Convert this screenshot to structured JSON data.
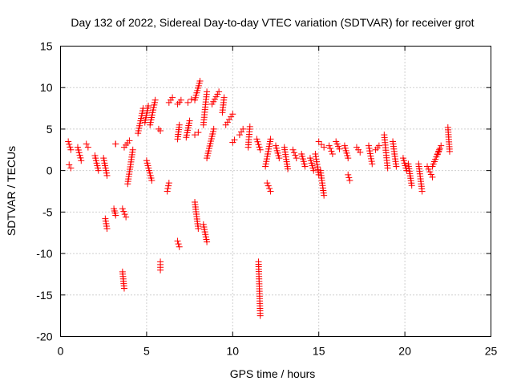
{
  "chart_data": {
    "type": "scatter",
    "title": "Day 132 of 2022, Sidereal Day-to-day VTEC variation (SDTVAR) for receiver grot",
    "xlabel": "GPS time / hours",
    "ylabel": "SDTVAR / TECUs",
    "xlim": [
      0,
      25
    ],
    "ylim": [
      -20,
      15
    ],
    "xticks": [
      0,
      5,
      10,
      15,
      20,
      25
    ],
    "yticks": [
      -20,
      -15,
      -10,
      -5,
      0,
      5,
      10,
      15
    ],
    "xtick_labels": [
      "0",
      "5",
      "10",
      "15",
      "20",
      "25"
    ],
    "ytick_labels": [
      "-20",
      "-15",
      "-10",
      "-5",
      "0",
      "5",
      "10",
      "15"
    ],
    "grid": true,
    "marker": "+",
    "color": "#ff0000",
    "series": [
      {
        "name": "SDTVAR",
        "segments": [
          [
            0.45,
            0.6,
            3.5,
            2.5
          ],
          [
            0.5,
            0.6,
            0.7,
            0.3
          ],
          [
            1.0,
            1.2,
            2.8,
            1.2
          ],
          [
            1.5,
            1.6,
            3.2,
            2.8
          ],
          [
            2.0,
            2.2,
            1.8,
            0.0
          ],
          [
            2.5,
            2.7,
            1.5,
            -0.6
          ],
          [
            2.6,
            2.7,
            -5.8,
            -7.0
          ],
          [
            3.1,
            3.2,
            -4.6,
            -5.4
          ],
          [
            3.2,
            3.2,
            3.2,
            3.2
          ],
          [
            3.6,
            3.7,
            -12.2,
            -14.2
          ],
          [
            3.6,
            3.8,
            -4.6,
            -5.6
          ],
          [
            3.7,
            4.0,
            2.8,
            3.6
          ],
          [
            3.9,
            4.2,
            -1.6,
            2.5
          ],
          [
            4.5,
            4.8,
            4.5,
            7.5
          ],
          [
            4.9,
            5.1,
            5.8,
            7.8
          ],
          [
            5.0,
            5.3,
            1.2,
            -1.2
          ],
          [
            5.2,
            5.5,
            5.5,
            8.5
          ],
          [
            5.7,
            5.8,
            5.0,
            4.8
          ],
          [
            5.8,
            5.8,
            -11.0,
            -12.0
          ],
          [
            6.2,
            6.3,
            -2.5,
            -1.5
          ],
          [
            6.3,
            6.5,
            8.2,
            8.8
          ],
          [
            6.8,
            6.9,
            3.8,
            5.5
          ],
          [
            6.8,
            7.0,
            8.0,
            8.5
          ],
          [
            6.8,
            6.9,
            -8.5,
            -9.2
          ],
          [
            7.3,
            7.5,
            4.0,
            6.0
          ],
          [
            7.4,
            7.6,
            8.2,
            8.6
          ],
          [
            7.8,
            8.0,
            -3.8,
            -7.0
          ],
          [
            7.8,
            8.0,
            4.3,
            4.6
          ],
          [
            7.8,
            8.1,
            8.5,
            10.8
          ],
          [
            8.3,
            8.5,
            -6.5,
            -8.6
          ],
          [
            8.3,
            8.5,
            5.5,
            9.5
          ],
          [
            8.5,
            8.9,
            1.5,
            5.0
          ],
          [
            8.8,
            9.2,
            8.0,
            9.5
          ],
          [
            9.4,
            9.5,
            7.0,
            8.8
          ],
          [
            9.6,
            10.0,
            5.5,
            6.8
          ],
          [
            10.0,
            10.1,
            3.4,
            3.7
          ],
          [
            10.4,
            10.6,
            4.3,
            5.0
          ],
          [
            10.9,
            11.0,
            2.8,
            5.3
          ],
          [
            11.4,
            11.6,
            3.8,
            2.5
          ],
          [
            11.5,
            11.6,
            -11.0,
            -17.5
          ],
          [
            11.9,
            12.2,
            0.5,
            3.8
          ],
          [
            12.0,
            12.2,
            -1.5,
            -2.5
          ],
          [
            12.5,
            12.7,
            3.0,
            1.5
          ],
          [
            13.0,
            13.2,
            2.8,
            0.2
          ],
          [
            13.5,
            13.7,
            2.5,
            1.5
          ],
          [
            14.0,
            14.2,
            2.0,
            0.5
          ],
          [
            14.5,
            14.7,
            1.5,
            0.0
          ],
          [
            14.8,
            15.0,
            2.0,
            -0.5
          ],
          [
            15.0,
            15.3,
            3.5,
            2.8
          ],
          [
            15.1,
            15.3,
            0.0,
            -3.0
          ],
          [
            15.6,
            15.8,
            3.0,
            2.0
          ],
          [
            16.0,
            16.2,
            3.5,
            2.6
          ],
          [
            16.5,
            16.7,
            3.0,
            1.5
          ],
          [
            16.7,
            16.8,
            -0.5,
            -1.2
          ],
          [
            17.2,
            17.4,
            2.8,
            2.2
          ],
          [
            17.9,
            18.1,
            3.0,
            0.8
          ],
          [
            18.3,
            18.5,
            2.5,
            3.0
          ],
          [
            18.8,
            19.0,
            4.3,
            0.3
          ],
          [
            19.3,
            19.5,
            3.5,
            0.5
          ],
          [
            19.9,
            20.1,
            1.5,
            0.0
          ],
          [
            20.2,
            20.4,
            0.8,
            -1.8
          ],
          [
            20.8,
            21.0,
            0.8,
            -2.5
          ],
          [
            21.3,
            21.6,
            0.5,
            -0.8
          ],
          [
            21.6,
            22.0,
            0.5,
            2.5
          ],
          [
            21.9,
            22.1,
            2.0,
            3.0
          ],
          [
            22.5,
            22.6,
            5.2,
            2.3
          ]
        ]
      }
    ]
  }
}
